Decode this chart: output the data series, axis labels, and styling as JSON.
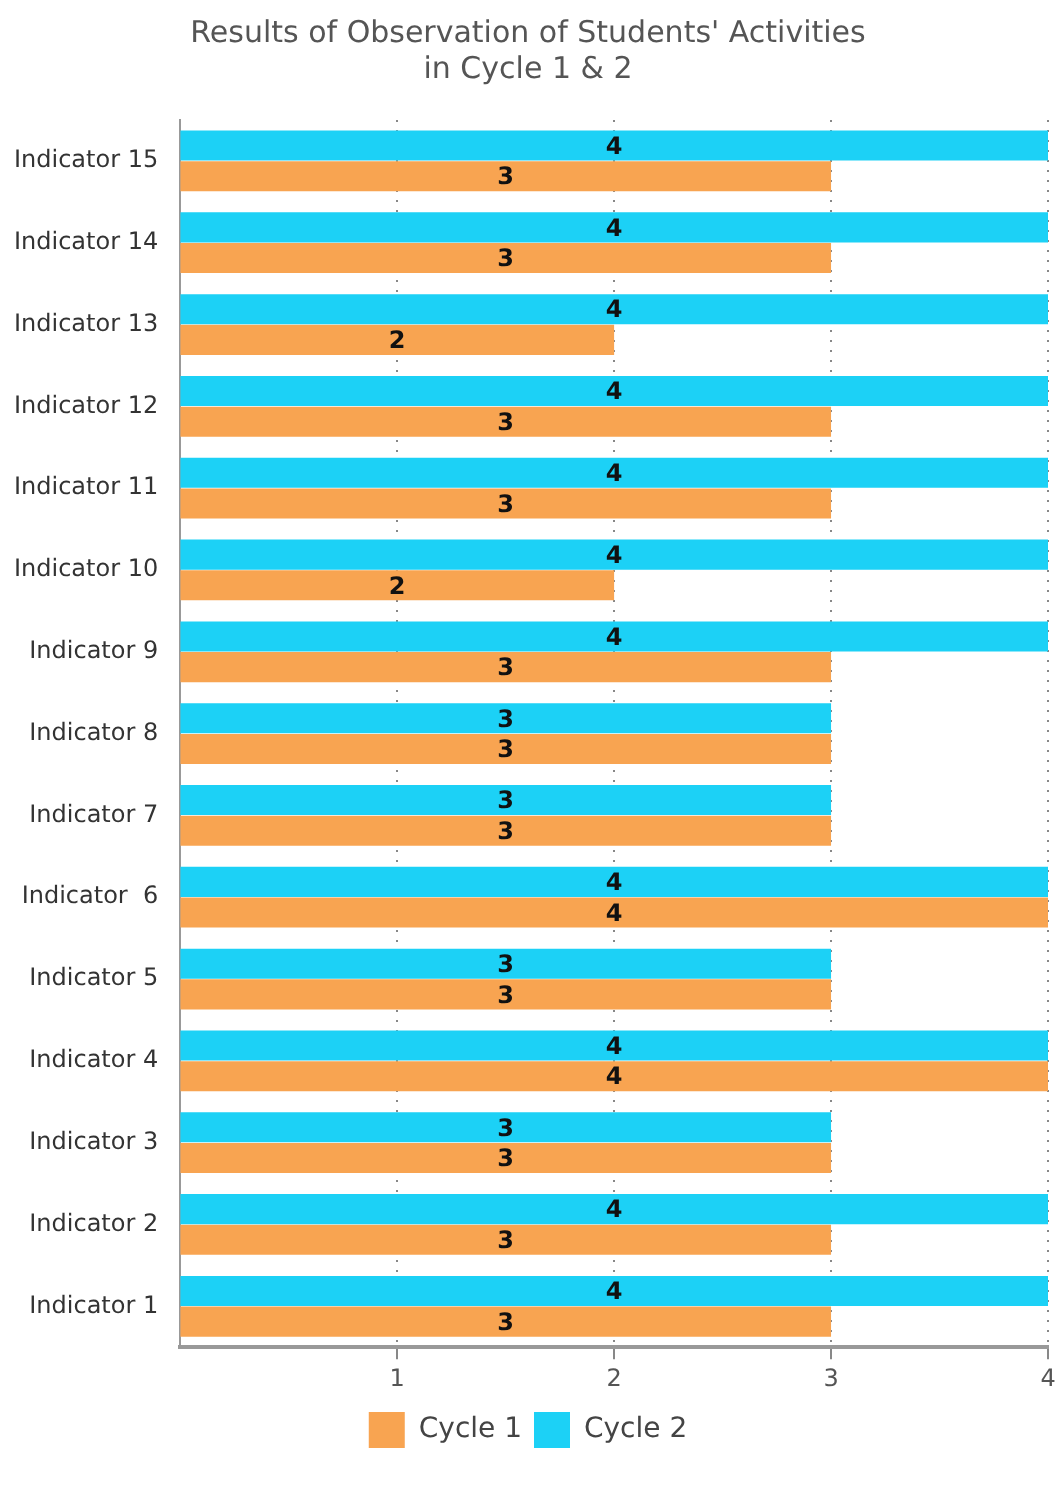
{
  "chart_data": {
    "type": "bar",
    "orientation": "horizontal",
    "title": "Results of Observation of Students' Activities\nin Cycle 1 & 2",
    "categories": [
      "Indicator 15",
      "Indicator 14",
      "Indicator 13",
      "Indicator 12",
      "Indicator 11",
      "Indicator 10",
      "Indicator 9",
      "Indicator 8",
      "Indicator 7",
      "Indicator  6",
      "Indicator 5",
      "Indicator 4",
      "Indicator 3",
      "Indicator 2",
      "Indicator 1"
    ],
    "series": [
      {
        "name": "Cycle 1",
        "color": "#f8a451",
        "values": [
          3,
          3,
          2,
          3,
          3,
          2,
          3,
          3,
          3,
          4,
          3,
          4,
          3,
          3,
          3
        ]
      },
      {
        "name": "Cycle 2",
        "color": "#1cd1f6",
        "values": [
          4,
          4,
          4,
          4,
          4,
          4,
          4,
          3,
          3,
          4,
          3,
          4,
          3,
          4,
          4
        ]
      }
    ],
    "xlim": [
      0,
      4
    ],
    "xticks": [
      1,
      2,
      3,
      4
    ],
    "grid": "x",
    "legend": "bottom",
    "data_labels": true
  }
}
